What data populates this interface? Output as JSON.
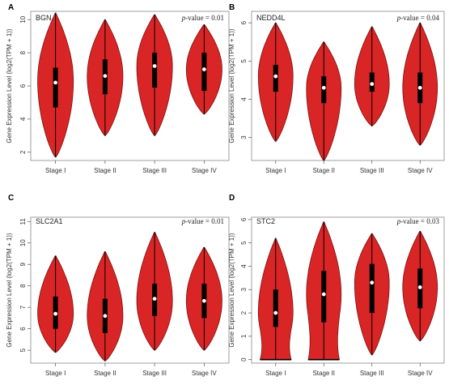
{
  "colors": {
    "violin_fill": "#d92525",
    "violin_stroke": "#7a1010",
    "box": "#000000",
    "median": "#ffffff",
    "frame": "#888888"
  },
  "chart_data": [
    {
      "type": "violin",
      "panel_letter": "A",
      "gene": "BGN",
      "pvalue_prefix": "p",
      "pvalue_text": "-value = 0.01",
      "ylabel": "Gene Expression Level (log2(TPM + 1))",
      "categories": [
        "Stage I",
        "Stage II",
        "Stage III",
        "Stage IV"
      ],
      "ylim": [
        1.5,
        10.5
      ],
      "yticks": [
        2,
        4,
        6,
        8,
        10
      ],
      "series": [
        {
          "min": 1.7,
          "max": 10.4,
          "q1": 4.7,
          "median": 6.2,
          "q3": 7.1,
          "whisker_low": 1.7,
          "whisker_high": 10.4,
          "peak": 6.3
        },
        {
          "min": 3.0,
          "max": 10.0,
          "q1": 5.5,
          "median": 6.6,
          "q3": 7.6,
          "whisker_low": 3.0,
          "whisker_high": 10.0,
          "peak": 6.6
        },
        {
          "min": 3.0,
          "max": 10.3,
          "q1": 5.9,
          "median": 7.2,
          "q3": 8.0,
          "whisker_low": 3.0,
          "whisker_high": 10.3,
          "peak": 7.2
        },
        {
          "min": 4.3,
          "max": 9.7,
          "q1": 5.7,
          "median": 7.0,
          "q3": 8.0,
          "whisker_low": 4.3,
          "whisker_high": 9.7,
          "peak": 7.0
        }
      ]
    },
    {
      "type": "violin",
      "panel_letter": "B",
      "gene": "NEDD4L",
      "pvalue_prefix": "p",
      "pvalue_text": "-value = 0.04",
      "ylabel": "Gene Expression Level (log2(TPM + 1))",
      "categories": [
        "Stage I",
        "Stage II",
        "Stage III",
        "Stage IV"
      ],
      "ylim": [
        2.4,
        6.3
      ],
      "yticks": [
        3,
        4,
        5,
        6
      ],
      "series": [
        {
          "min": 2.9,
          "max": 6.0,
          "q1": 4.2,
          "median": 4.6,
          "q3": 4.9,
          "whisker_low": 2.9,
          "whisker_high": 6.0,
          "peak": 4.6
        },
        {
          "min": 2.4,
          "max": 5.5,
          "q1": 3.9,
          "median": 4.3,
          "q3": 4.6,
          "whisker_low": 2.4,
          "whisker_high": 5.5,
          "peak": 4.3
        },
        {
          "min": 3.3,
          "max": 5.9,
          "q1": 4.2,
          "median": 4.4,
          "q3": 4.7,
          "whisker_low": 3.3,
          "whisker_high": 5.9,
          "peak": 4.4
        },
        {
          "min": 2.8,
          "max": 6.0,
          "q1": 3.9,
          "median": 4.3,
          "q3": 4.7,
          "whisker_low": 2.8,
          "whisker_high": 6.0,
          "peak": 4.3
        }
      ]
    },
    {
      "type": "violin",
      "panel_letter": "C",
      "gene": "SLC2A1",
      "pvalue_prefix": "p",
      "pvalue_text": "-value = 0.01",
      "ylabel": "Gene Expression Level (log2(TPM + 1))",
      "categories": [
        "Stage I",
        "Stage II",
        "Stage III",
        "Stage IV"
      ],
      "ylim": [
        4.4,
        11.2
      ],
      "yticks": [
        5,
        6,
        7,
        8,
        9,
        10,
        11
      ],
      "series": [
        {
          "min": 4.9,
          "max": 9.4,
          "q1": 6.0,
          "median": 6.7,
          "q3": 7.5,
          "whisker_low": 4.9,
          "whisker_high": 9.4,
          "peak": 6.7
        },
        {
          "min": 4.5,
          "max": 9.6,
          "q1": 5.8,
          "median": 6.6,
          "q3": 7.4,
          "whisker_low": 4.5,
          "whisker_high": 9.6,
          "peak": 6.6
        },
        {
          "min": 5.0,
          "max": 10.5,
          "q1": 6.6,
          "median": 7.4,
          "q3": 8.1,
          "whisker_low": 5.0,
          "whisker_high": 10.5,
          "peak": 7.3
        },
        {
          "min": 5.0,
          "max": 9.8,
          "q1": 6.5,
          "median": 7.3,
          "q3": 8.1,
          "whisker_low": 5.0,
          "whisker_high": 9.8,
          "peak": 7.3
        }
      ]
    },
    {
      "type": "violin",
      "panel_letter": "D",
      "gene": "STC2",
      "pvalue_prefix": "p",
      "pvalue_text": "-value = 0.03",
      "ylabel": "Gene Expression Level (log2(TPM + 1))",
      "categories": [
        "Stage I",
        "Stage II",
        "Stage III",
        "Stage IV"
      ],
      "ylim": [
        -0.15,
        6.1
      ],
      "yticks": [
        0,
        1,
        2,
        3,
        4,
        5,
        6
      ],
      "series": [
        {
          "min": 0.0,
          "max": 5.2,
          "q1": 1.4,
          "median": 2.0,
          "q3": 3.0,
          "whisker_low": 0.0,
          "whisker_high": 5.2,
          "peak": 2.0,
          "floor_width": 0.9
        },
        {
          "min": 0.0,
          "max": 5.9,
          "q1": 1.6,
          "median": 2.8,
          "q3": 3.8,
          "whisker_low": 0.0,
          "whisker_high": 5.9,
          "peak": 2.8,
          "floor_width": 0.9
        },
        {
          "min": 0.2,
          "max": 5.4,
          "q1": 2.0,
          "median": 3.3,
          "q3": 4.1,
          "whisker_low": 0.2,
          "whisker_high": 5.4,
          "peak": 3.3
        },
        {
          "min": 0.8,
          "max": 5.5,
          "q1": 2.2,
          "median": 3.1,
          "q3": 3.9,
          "whisker_low": 0.8,
          "whisker_high": 5.5,
          "peak": 3.1
        }
      ]
    }
  ]
}
